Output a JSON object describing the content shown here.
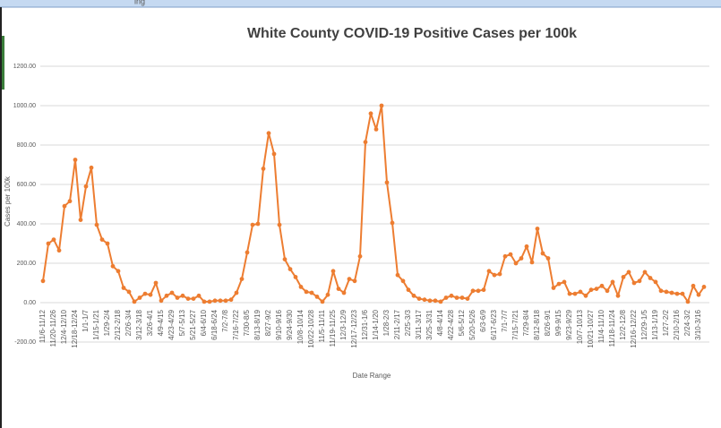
{
  "page": {
    "banner": "ing"
  },
  "chart_data": {
    "type": "line",
    "title": "White County COVID-19 Positive Cases per 100k",
    "y_label": "Cases per 100k",
    "x_label": "Date Range",
    "color": "#ed7d31",
    "grid": true,
    "markers": true,
    "categories": [
      "11/6-11/12",
      null,
      "11/20-11/26",
      null,
      "12/4-12/10",
      null,
      "12/18-12/24",
      null,
      "1/1-1/7",
      null,
      "1/15-1/21",
      null,
      "1/29-2/4",
      null,
      "2/12-2/18",
      null,
      "2/26-3/4",
      null,
      "3/12-3/18",
      null,
      "3/26-4/1",
      null,
      "4/9-4/15",
      null,
      "4/23-4/29",
      null,
      "5/7-5/13",
      null,
      "5/21-5/27",
      null,
      "6/4-6/10",
      null,
      "6/18-6/24",
      null,
      "7/2-7/8",
      null,
      "7/16-7/22",
      null,
      "7/30-8/5",
      null,
      "8/13-8/19",
      null,
      "8/27-9/2",
      null,
      "9/10-9/16",
      null,
      "9/24-9/30",
      null,
      "10/8-10/14",
      null,
      "10/22-10/28",
      null,
      "11/5-11/11",
      null,
      "11/19-11/25",
      null,
      "12/3-12/9",
      null,
      "12/17-12/23",
      null,
      "12/31-1/6",
      null,
      "1/14-1/20",
      null,
      "1/28-2/3",
      null,
      "2/11-2/17",
      null,
      "2/25-3/3",
      null,
      "3/11-3/17",
      null,
      "3/25-3/31",
      null,
      "4/8-4/14",
      null,
      "4/22-4/28",
      null,
      "5/6-5/12",
      null,
      "5/20-5/26",
      null,
      "6/3-6/9",
      null,
      "6/17-6/23",
      null,
      "7/1-7/7",
      null,
      "7/15-7/21",
      null,
      "7/29-8/4",
      null,
      "8/12-8/18",
      null,
      "8/26-9/1",
      null,
      "9/9-9/15",
      null,
      "9/23-9/29",
      null,
      "10/7-10/13",
      null,
      "10/21-10/27",
      null,
      "11/4-11/10",
      null,
      "11/18-11/24",
      null,
      "12/2-12/8",
      null,
      "12/16-12/22",
      null,
      "12/29-1/5",
      null,
      "1/13-1/19",
      null,
      "1/27-2/2",
      null,
      "2/10-2/16",
      null,
      "2/24-3/2",
      null,
      "3/10-3/16",
      null
    ],
    "values": [
      110,
      300,
      320,
      265,
      490,
      515,
      725,
      420,
      590,
      685,
      395,
      320,
      300,
      185,
      160,
      75,
      55,
      5,
      25,
      45,
      40,
      100,
      10,
      35,
      50,
      25,
      35,
      20,
      20,
      35,
      5,
      5,
      10,
      10,
      10,
      15,
      50,
      120,
      255,
      395,
      400,
      680,
      860,
      755,
      395,
      220,
      170,
      130,
      80,
      55,
      50,
      30,
      5,
      40,
      160,
      70,
      50,
      120,
      110,
      235,
      815,
      960,
      880,
      1000,
      610,
      405,
      140,
      110,
      65,
      35,
      20,
      15,
      10,
      10,
      5,
      25,
      35,
      25,
      25,
      20,
      60,
      60,
      65,
      160,
      140,
      145,
      235,
      245,
      200,
      225,
      285,
      205,
      375,
      250,
      225,
      75,
      95,
      105,
      45,
      45,
      55,
      35,
      65,
      70,
      85,
      60,
      105,
      35,
      130,
      155,
      100,
      110,
      155,
      125,
      105,
      60,
      55,
      50,
      45,
      45,
      5,
      85,
      40,
      80
    ],
    "ylim": [
      -200,
      1200
    ],
    "yticks": [
      {
        "value": -200,
        "label": "-200.00"
      },
      {
        "value": 0,
        "label": "0.00"
      },
      {
        "value": 200,
        "label": "200.00"
      },
      {
        "value": 400,
        "label": "400.00"
      },
      {
        "value": 600,
        "label": "600.00"
      },
      {
        "value": 800,
        "label": "800.00"
      },
      {
        "value": 1000,
        "label": "1000.00"
      },
      {
        "value": 1200,
        "label": "1200.00"
      }
    ]
  }
}
